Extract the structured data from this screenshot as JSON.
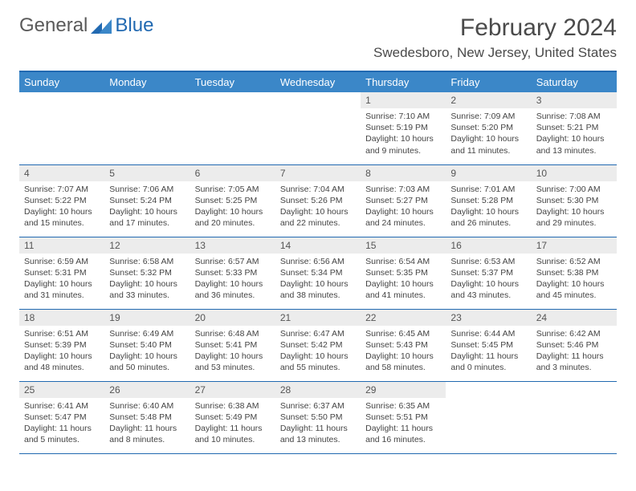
{
  "logo": {
    "text1": "General",
    "text2": "Blue"
  },
  "title": "February 2024",
  "location": "Swedesboro, New Jersey, United States",
  "colors": {
    "header_bg": "#3b87c8",
    "border": "#2169b1",
    "daynum_bg": "#ececec",
    "text_dark": "#4a4a4a"
  },
  "day_headers": [
    "Sunday",
    "Monday",
    "Tuesday",
    "Wednesday",
    "Thursday",
    "Friday",
    "Saturday"
  ],
  "weeks": [
    [
      null,
      null,
      null,
      null,
      {
        "n": "1",
        "sr": "7:10 AM",
        "ss": "5:19 PM",
        "dl": "10 hours and 9 minutes."
      },
      {
        "n": "2",
        "sr": "7:09 AM",
        "ss": "5:20 PM",
        "dl": "10 hours and 11 minutes."
      },
      {
        "n": "3",
        "sr": "7:08 AM",
        "ss": "5:21 PM",
        "dl": "10 hours and 13 minutes."
      }
    ],
    [
      {
        "n": "4",
        "sr": "7:07 AM",
        "ss": "5:22 PM",
        "dl": "10 hours and 15 minutes."
      },
      {
        "n": "5",
        "sr": "7:06 AM",
        "ss": "5:24 PM",
        "dl": "10 hours and 17 minutes."
      },
      {
        "n": "6",
        "sr": "7:05 AM",
        "ss": "5:25 PM",
        "dl": "10 hours and 20 minutes."
      },
      {
        "n": "7",
        "sr": "7:04 AM",
        "ss": "5:26 PM",
        "dl": "10 hours and 22 minutes."
      },
      {
        "n": "8",
        "sr": "7:03 AM",
        "ss": "5:27 PM",
        "dl": "10 hours and 24 minutes."
      },
      {
        "n": "9",
        "sr": "7:01 AM",
        "ss": "5:28 PM",
        "dl": "10 hours and 26 minutes."
      },
      {
        "n": "10",
        "sr": "7:00 AM",
        "ss": "5:30 PM",
        "dl": "10 hours and 29 minutes."
      }
    ],
    [
      {
        "n": "11",
        "sr": "6:59 AM",
        "ss": "5:31 PM",
        "dl": "10 hours and 31 minutes."
      },
      {
        "n": "12",
        "sr": "6:58 AM",
        "ss": "5:32 PM",
        "dl": "10 hours and 33 minutes."
      },
      {
        "n": "13",
        "sr": "6:57 AM",
        "ss": "5:33 PM",
        "dl": "10 hours and 36 minutes."
      },
      {
        "n": "14",
        "sr": "6:56 AM",
        "ss": "5:34 PM",
        "dl": "10 hours and 38 minutes."
      },
      {
        "n": "15",
        "sr": "6:54 AM",
        "ss": "5:35 PM",
        "dl": "10 hours and 41 minutes."
      },
      {
        "n": "16",
        "sr": "6:53 AM",
        "ss": "5:37 PM",
        "dl": "10 hours and 43 minutes."
      },
      {
        "n": "17",
        "sr": "6:52 AM",
        "ss": "5:38 PM",
        "dl": "10 hours and 45 minutes."
      }
    ],
    [
      {
        "n": "18",
        "sr": "6:51 AM",
        "ss": "5:39 PM",
        "dl": "10 hours and 48 minutes."
      },
      {
        "n": "19",
        "sr": "6:49 AM",
        "ss": "5:40 PM",
        "dl": "10 hours and 50 minutes."
      },
      {
        "n": "20",
        "sr": "6:48 AM",
        "ss": "5:41 PM",
        "dl": "10 hours and 53 minutes."
      },
      {
        "n": "21",
        "sr": "6:47 AM",
        "ss": "5:42 PM",
        "dl": "10 hours and 55 minutes."
      },
      {
        "n": "22",
        "sr": "6:45 AM",
        "ss": "5:43 PM",
        "dl": "10 hours and 58 minutes."
      },
      {
        "n": "23",
        "sr": "6:44 AM",
        "ss": "5:45 PM",
        "dl": "11 hours and 0 minutes."
      },
      {
        "n": "24",
        "sr": "6:42 AM",
        "ss": "5:46 PM",
        "dl": "11 hours and 3 minutes."
      }
    ],
    [
      {
        "n": "25",
        "sr": "6:41 AM",
        "ss": "5:47 PM",
        "dl": "11 hours and 5 minutes."
      },
      {
        "n": "26",
        "sr": "6:40 AM",
        "ss": "5:48 PM",
        "dl": "11 hours and 8 minutes."
      },
      {
        "n": "27",
        "sr": "6:38 AM",
        "ss": "5:49 PM",
        "dl": "11 hours and 10 minutes."
      },
      {
        "n": "28",
        "sr": "6:37 AM",
        "ss": "5:50 PM",
        "dl": "11 hours and 13 minutes."
      },
      {
        "n": "29",
        "sr": "6:35 AM",
        "ss": "5:51 PM",
        "dl": "11 hours and 16 minutes."
      },
      null,
      null
    ]
  ],
  "labels": {
    "sunrise": "Sunrise: ",
    "sunset": "Sunset: ",
    "daylight": "Daylight: "
  }
}
